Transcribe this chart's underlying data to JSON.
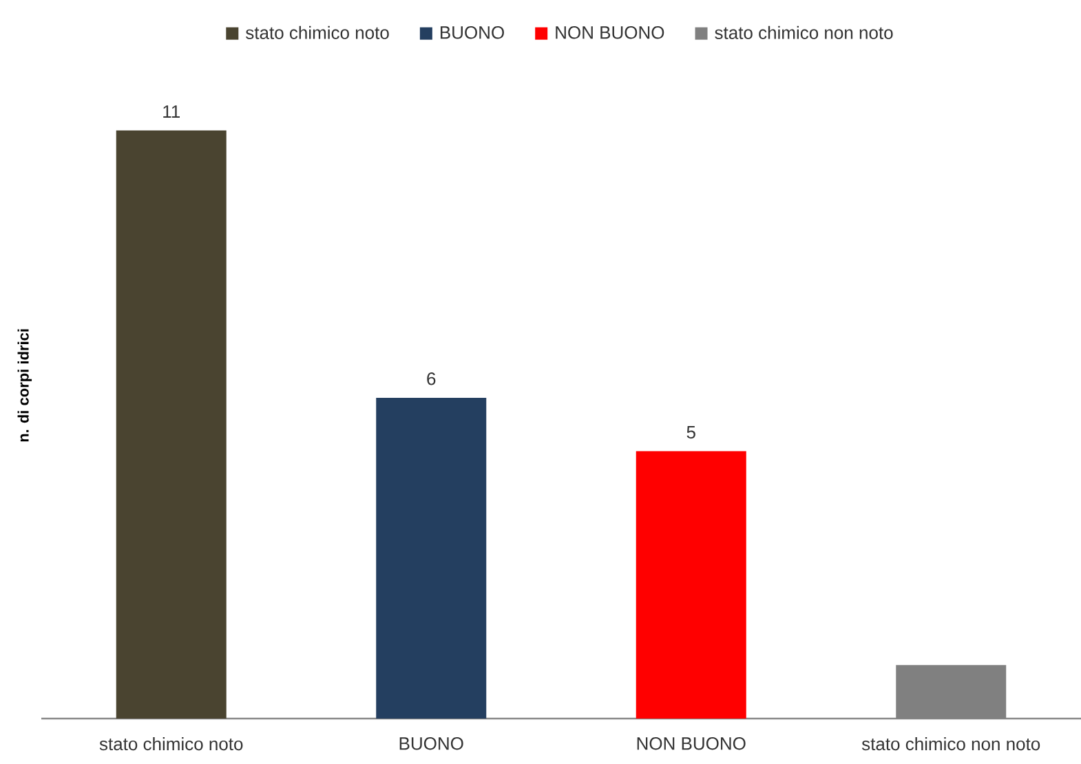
{
  "chart_data": {
    "type": "bar",
    "ylabel": "n. di corpi idrici",
    "categories": [
      "stato chimico noto",
      "BUONO",
      "NON BUONO",
      "stato chimico non noto"
    ],
    "series": [
      {
        "name": "stato chimico noto",
        "color": "#4a4430",
        "values": [
          11,
          null,
          null,
          null
        ],
        "value_labels": [
          "11",
          null,
          null,
          null
        ]
      },
      {
        "name": "BUONO",
        "color": "#243f60",
        "values": [
          null,
          6,
          null,
          null
        ],
        "value_labels": [
          null,
          "6",
          null,
          null
        ]
      },
      {
        "name": "NON BUONO",
        "color": "#ff0000",
        "values": [
          null,
          null,
          5,
          null
        ],
        "value_labels": [
          null,
          null,
          "5",
          null
        ]
      },
      {
        "name": "stato chimico non noto",
        "color": "#808080",
        "values": [
          null,
          null,
          null,
          1
        ]
      }
    ],
    "legend": "top"
  }
}
